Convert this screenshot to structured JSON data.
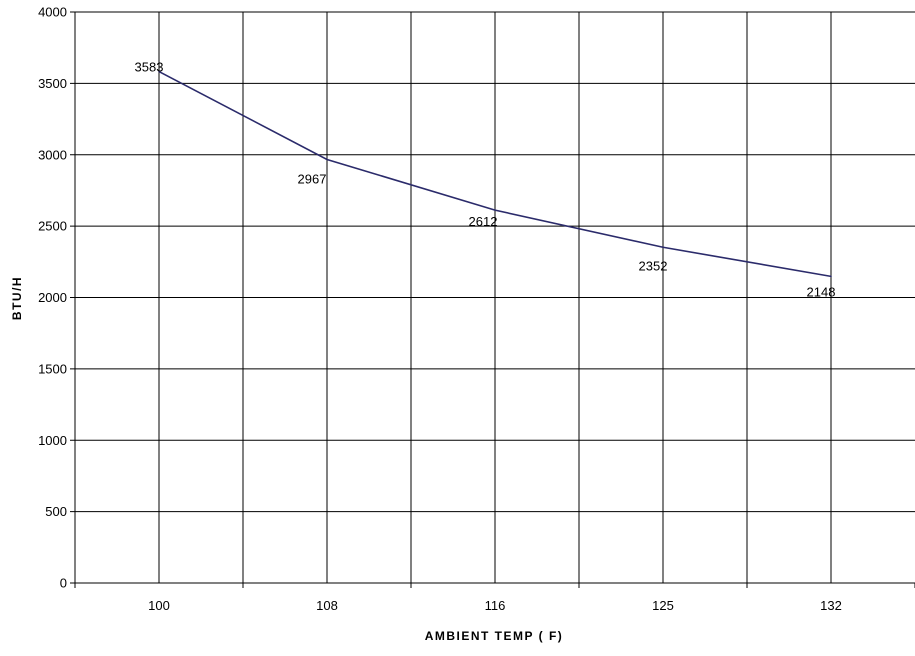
{
  "chart_data": {
    "type": "line",
    "categories": [
      "100",
      "108",
      "116",
      "125",
      "132"
    ],
    "series": [
      {
        "values": [
          3583,
          2967,
          2612,
          2352,
          2148
        ]
      }
    ],
    "data_labels": [
      "3583",
      "2967",
      "2612",
      "2352",
      "2148"
    ],
    "xlabel": "AMBIENT TEMP ( F)",
    "ylabel": "BTU/H",
    "ylim": [
      0,
      4000
    ],
    "yticks": [
      0,
      500,
      1000,
      1500,
      2000,
      2500,
      3000,
      3500,
      4000
    ],
    "grid": true,
    "line_color": "#2b2b6b"
  }
}
